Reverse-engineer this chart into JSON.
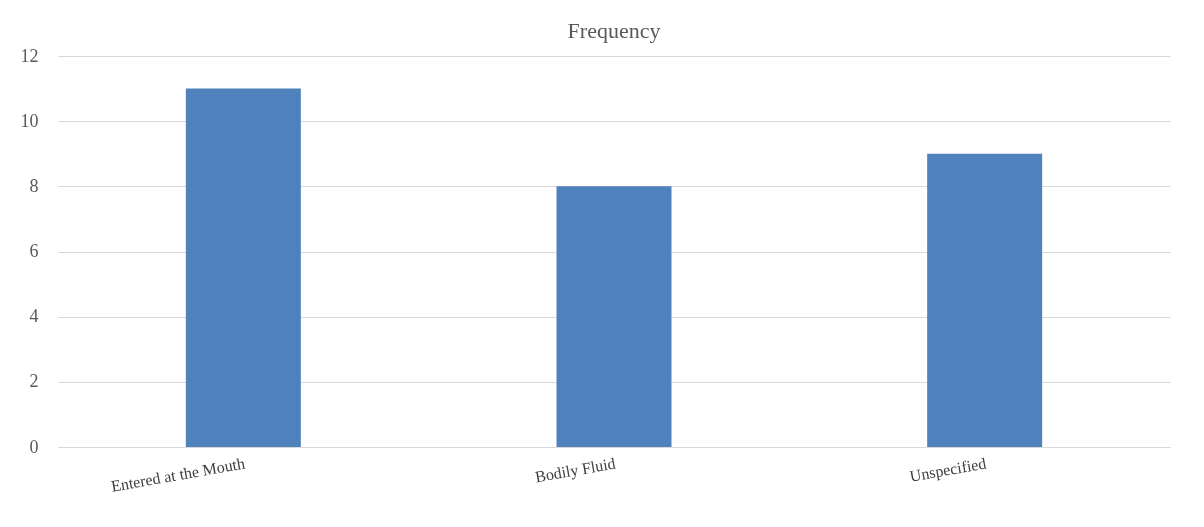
{
  "chart_data": {
    "type": "bar",
    "title": "Frequency",
    "categories": [
      "Entered at the Mouth",
      "Bodily Fluid",
      "Unspecified"
    ],
    "values": [
      11,
      8,
      9
    ],
    "color": "#4f81bd",
    "ylim": [
      0,
      12
    ],
    "yticks": [
      0,
      2,
      4,
      6,
      8,
      10,
      12
    ],
    "grid": "y"
  }
}
